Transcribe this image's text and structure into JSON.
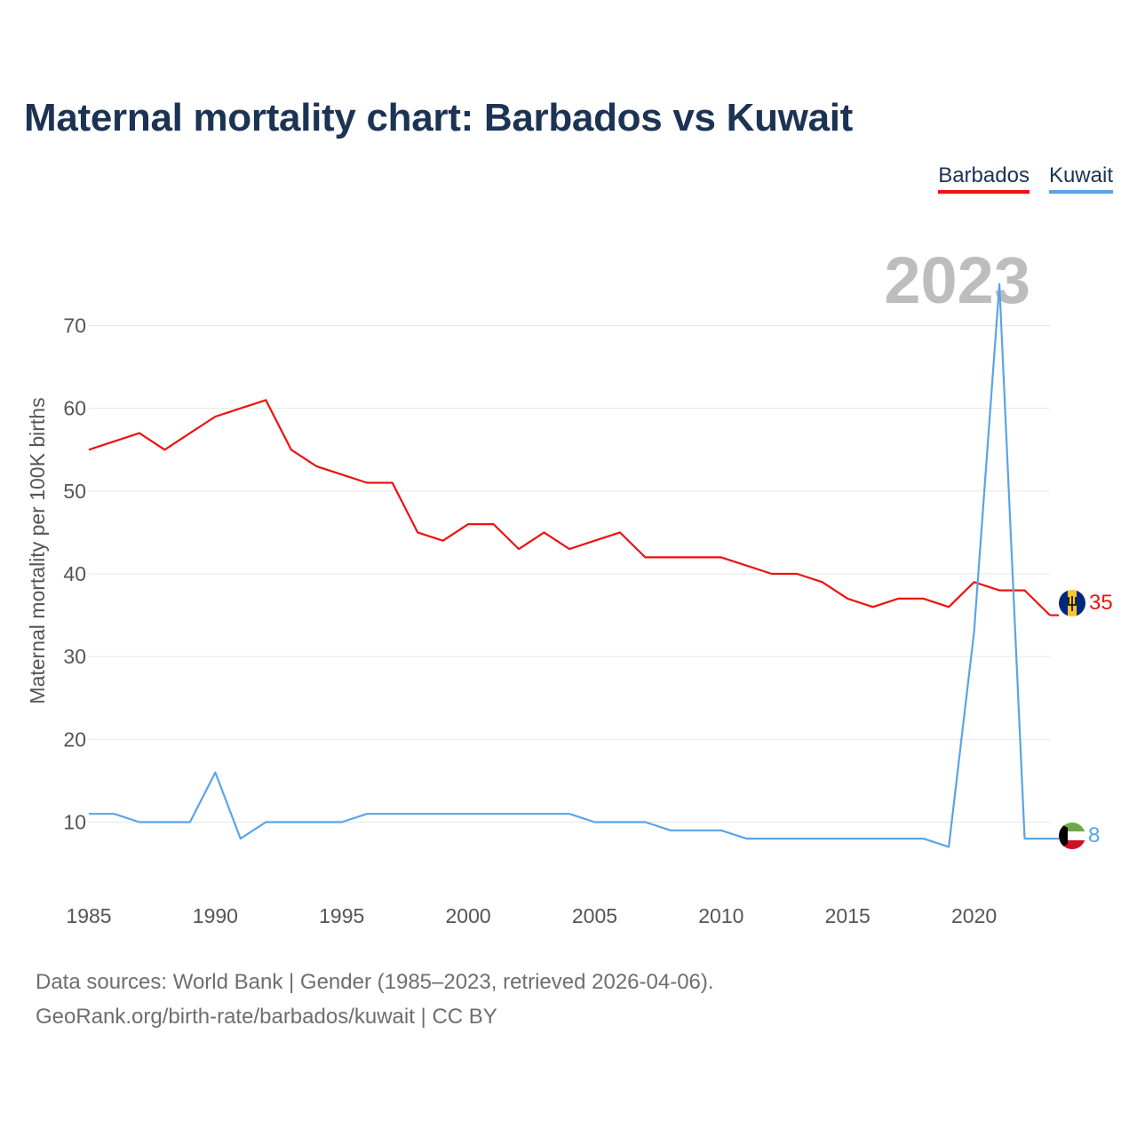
{
  "title": "Maternal mortality chart: Barbados vs Kuwait",
  "legend": [
    {
      "label": "Barbados",
      "color": "#ee1111"
    },
    {
      "label": "Kuwait",
      "color": "#5aa4e6"
    }
  ],
  "footer": {
    "line1": "Data sources: World Bank | Gender (1985–2023, retrieved 2026-04-06).",
    "line2": "GeoRank.org/birth-rate/barbados/kuwait | CC BY"
  },
  "chart_data": {
    "type": "line",
    "title": "Maternal mortality chart: Barbados vs Kuwait",
    "current_year_label": "2023",
    "xlabel": "",
    "ylabel": "Maternal mortality per 100K births",
    "x": [
      1985,
      1986,
      1987,
      1988,
      1989,
      1990,
      1991,
      1992,
      1993,
      1994,
      1995,
      1996,
      1997,
      1998,
      1999,
      2000,
      2001,
      2002,
      2003,
      2004,
      2005,
      2006,
      2007,
      2008,
      2009,
      2010,
      2011,
      2012,
      2013,
      2014,
      2015,
      2016,
      2017,
      2018,
      2019,
      2020,
      2021,
      2022,
      2023
    ],
    "xlim": [
      1985,
      2023
    ],
    "ylim": [
      2,
      78
    ],
    "x_ticks": [
      1985,
      1990,
      1995,
      2000,
      2005,
      2010,
      2015,
      2020
    ],
    "y_ticks": [
      10,
      20,
      30,
      40,
      50,
      60,
      70
    ],
    "grid": true,
    "legend_position": "top-right",
    "series": [
      {
        "name": "Barbados",
        "color": "#ee1111",
        "end_label": "35",
        "values": [
          55,
          56,
          57,
          55,
          57,
          59,
          60,
          61,
          55,
          53,
          52,
          51,
          51,
          45,
          44,
          46,
          46,
          43,
          45,
          43,
          44,
          45,
          42,
          42,
          42,
          42,
          41,
          40,
          40,
          39,
          37,
          36,
          37,
          37,
          36,
          39,
          38,
          38,
          35
        ]
      },
      {
        "name": "Kuwait",
        "color": "#5aa4e6",
        "end_label": "8",
        "values": [
          11,
          11,
          10,
          10,
          10,
          16,
          8,
          10,
          10,
          10,
          10,
          11,
          11,
          11,
          11,
          11,
          11,
          11,
          11,
          11,
          10,
          10,
          10,
          9,
          9,
          9,
          8,
          8,
          8,
          8,
          8,
          8,
          8,
          8,
          7,
          33,
          75,
          8,
          8
        ]
      }
    ]
  }
}
